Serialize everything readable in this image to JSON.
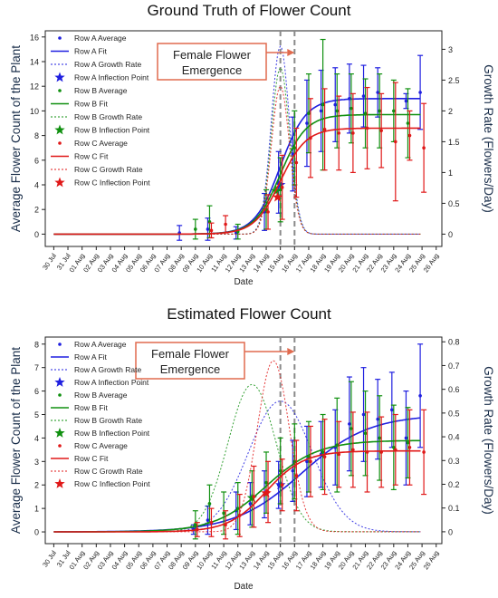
{
  "chart_data": [
    {
      "type": "line",
      "title": "Ground Truth of Flower Count",
      "xlabel": "Date",
      "ylabel": "Average Flower Count of the Plant",
      "y2label": "Growth Rate (Flowers/Day)",
      "ylim": [
        -1,
        16.5
      ],
      "yticks": [
        0,
        2,
        4,
        6,
        8,
        10,
        12,
        14,
        16
      ],
      "y2lim": [
        -0.2,
        3.3
      ],
      "y2ticks": [
        0,
        0.5,
        1,
        1.5,
        2,
        2.5,
        3
      ],
      "x_ticks": [
        "30 Jul",
        "31 Jul",
        "01 Aug",
        "02 Aug",
        "03 Aug",
        "04 Aug",
        "05 Aug",
        "06 Aug",
        "07 Aug",
        "08 Aug",
        "09 Aug",
        "10 Aug",
        "11 Aug",
        "12 Aug",
        "13 Aug",
        "14 Aug",
        "15 Aug",
        "16 Aug",
        "17 Aug",
        "18 Aug",
        "19 Aug",
        "20 Aug",
        "21 Aug",
        "22 Aug",
        "23 Aug",
        "24 Aug",
        "25 Aug",
        "26 Aug"
      ],
      "annotation": {
        "text_line1": "Female Flower",
        "text_line2": "Emergence"
      },
      "vlines": [
        "15 Aug",
        "16 Aug"
      ],
      "legend_position": "top-left",
      "series": [
        {
          "name": "Row A",
          "color": "#1f1fe0",
          "fit": {
            "L": 11.0,
            "k": 1.1,
            "x0": "15 Aug"
          },
          "rate": {
            "peak": 3.05,
            "center": "15 Aug",
            "width": 0.9
          },
          "inflection": {
            "x": "15 Aug",
            "y": 4.0
          },
          "average": [
            {
              "date": "08 Aug",
              "mean": 0.1,
              "err": 0.6
            },
            {
              "date": "10 Aug",
              "mean": 0.4,
              "err": 0.9
            },
            {
              "date": "12 Aug",
              "mean": 0.1,
              "err": 0.5
            },
            {
              "date": "14 Aug",
              "mean": 1.8,
              "err": 1.5
            },
            {
              "date": "15 Aug",
              "mean": 4.2,
              "err": 2.5
            },
            {
              "date": "16 Aug",
              "mean": 6.5,
              "err": 3.0
            },
            {
              "date": "17 Aug",
              "mean": 9.0,
              "err": 3.5
            },
            {
              "date": "18 Aug",
              "mean": 10.0,
              "err": 3.3
            },
            {
              "date": "19 Aug",
              "mean": 10.5,
              "err": 3.0
            },
            {
              "date": "20 Aug",
              "mean": 11.0,
              "err": 2.8
            },
            {
              "date": "21 Aug",
              "mean": 11.2,
              "err": 2.5
            },
            {
              "date": "22 Aug",
              "mean": 11.5,
              "err": 2.0
            },
            {
              "date": "24 Aug",
              "mean": 10.8,
              "err": 0.6
            },
            {
              "date": "25 Aug",
              "mean": 11.5,
              "err": 3.0
            }
          ]
        },
        {
          "name": "Row B",
          "color": "#109010",
          "fit": {
            "L": 9.7,
            "k": 1.1,
            "x0": "15 Aug"
          },
          "rate": {
            "peak": 2.7,
            "center": "15 Aug",
            "width": 0.9
          },
          "inflection": {
            "x": "14.7 Aug",
            "y": 3.5
          },
          "average": [
            {
              "date": "09 Aug",
              "mean": 0.4,
              "err": 0.8
            },
            {
              "date": "10 Aug",
              "mean": 1.0,
              "err": 1.3
            },
            {
              "date": "12 Aug",
              "mean": 0.2,
              "err": 0.6
            },
            {
              "date": "14 Aug",
              "mean": 2.0,
              "err": 1.6
            },
            {
              "date": "15 Aug",
              "mean": 3.6,
              "err": 2.6
            },
            {
              "date": "16 Aug",
              "mean": 7.0,
              "err": 3.0
            },
            {
              "date": "17 Aug",
              "mean": 9.8,
              "err": 3.2
            },
            {
              "date": "18 Aug",
              "mean": 10.5,
              "err": 5.3
            },
            {
              "date": "19 Aug",
              "mean": 10.0,
              "err": 3.0
            },
            {
              "date": "20 Aug",
              "mean": 10.2,
              "err": 2.8
            },
            {
              "date": "21 Aug",
              "mean": 9.8,
              "err": 2.8
            },
            {
              "date": "22 Aug",
              "mean": 10.0,
              "err": 3.0
            },
            {
              "date": "23 Aug",
              "mean": 10.0,
              "err": 2.5
            },
            {
              "date": "24 Aug",
              "mean": 9.0,
              "err": 2.8
            }
          ]
        },
        {
          "name": "Row C",
          "color": "#e01818",
          "fit": {
            "L": 8.6,
            "k": 1.1,
            "x0": "15 Aug"
          },
          "rate": {
            "peak": 2.4,
            "center": "15 Aug",
            "width": 0.9
          },
          "inflection": {
            "x": "14.8 Aug",
            "y": 3.0
          },
          "average": [
            {
              "date": "10 Aug",
              "mean": 0.3,
              "err": 0.6
            },
            {
              "date": "11 Aug",
              "mean": 0.8,
              "err": 0.7
            },
            {
              "date": "14 Aug",
              "mean": 1.8,
              "err": 1.4
            },
            {
              "date": "15 Aug",
              "mean": 3.8,
              "err": 2.6
            },
            {
              "date": "16 Aug",
              "mean": 5.8,
              "err": 2.8
            },
            {
              "date": "17 Aug",
              "mean": 7.8,
              "err": 3.2
            },
            {
              "date": "18 Aug",
              "mean": 8.5,
              "err": 3.3
            },
            {
              "date": "19 Aug",
              "mean": 8.2,
              "err": 3.0
            },
            {
              "date": "20 Aug",
              "mean": 8.2,
              "err": 3.2
            },
            {
              "date": "21 Aug",
              "mean": 8.6,
              "err": 3.3
            },
            {
              "date": "22 Aug",
              "mean": 8.4,
              "err": 3.0
            },
            {
              "date": "23 Aug",
              "mean": 7.5,
              "err": 4.8
            },
            {
              "date": "24 Aug",
              "mean": 8.0,
              "err": 2.0
            },
            {
              "date": "25 Aug",
              "mean": 7.0,
              "err": 3.6
            }
          ]
        }
      ],
      "legend_suffixes": [
        "Average",
        "Fit",
        "Growth Rate",
        "Inflection Point"
      ]
    },
    {
      "type": "line",
      "title": "Estimated Flower Count",
      "xlabel": "Date",
      "ylabel": "Average Flower Count of the Plant",
      "y2label": "Growth Rate (Flowers/Day)",
      "ylim": [
        -0.5,
        8.3
      ],
      "yticks": [
        0,
        1,
        2,
        3,
        4,
        5,
        6,
        7,
        8
      ],
      "y2lim": [
        -0.05,
        0.82
      ],
      "y2ticks": [
        0,
        0.1,
        0.2,
        0.3,
        0.4,
        0.5,
        0.6,
        0.7,
        0.8
      ],
      "x_ticks": [
        "30 Jul",
        "31 Jul",
        "01 Aug",
        "02 Aug",
        "03 Aug",
        "04 Aug",
        "05 Aug",
        "06 Aug",
        "07 Aug",
        "08 Aug",
        "09 Aug",
        "10 Aug",
        "11 Aug",
        "12 Aug",
        "13 Aug",
        "14 Aug",
        "15 Aug",
        "16 Aug",
        "17 Aug",
        "18 Aug",
        "19 Aug",
        "20 Aug",
        "21 Aug",
        "22 Aug",
        "23 Aug",
        "24 Aug",
        "25 Aug",
        "26 Aug"
      ],
      "annotation": {
        "text_line1": "Female Flower",
        "text_line2": "Emergence"
      },
      "vlines": [
        "15 Aug",
        "16 Aug"
      ],
      "legend_position": "top-left",
      "series": [
        {
          "name": "Row A",
          "color": "#1f1fe0",
          "fit": {
            "L": 5.0,
            "k": 0.42,
            "x0": "16.5 Aug"
          },
          "rate": {
            "peak": 0.55,
            "center": "15 Aug",
            "width": 3.2
          },
          "inflection": {
            "x": "15 Aug",
            "y": 2.0
          },
          "average": [
            {
              "date": "09 Aug",
              "mean": 0.1,
              "err": 0.2
            },
            {
              "date": "10 Aug",
              "mean": 0.5,
              "err": 0.6
            },
            {
              "date": "12 Aug",
              "mean": 0.9,
              "err": 0.8
            },
            {
              "date": "13 Aug",
              "mean": 1.2,
              "err": 0.9
            },
            {
              "date": "14 Aug",
              "mean": 1.6,
              "err": 1.0
            },
            {
              "date": "15 Aug",
              "mean": 2.0,
              "err": 1.0
            },
            {
              "date": "16 Aug",
              "mean": 2.6,
              "err": 1.3
            },
            {
              "date": "17 Aug",
              "mean": 3.0,
              "err": 1.5
            },
            {
              "date": "18 Aug",
              "mean": 3.3,
              "err": 1.4
            },
            {
              "date": "19 Aug",
              "mean": 3.6,
              "err": 1.6
            },
            {
              "date": "20 Aug",
              "mean": 4.6,
              "err": 2.0
            },
            {
              "date": "21 Aug",
              "mean": 5.0,
              "err": 2.0
            },
            {
              "date": "22 Aug",
              "mean": 4.8,
              "err": 1.7
            },
            {
              "date": "23 Aug",
              "mean": 5.2,
              "err": 1.6
            },
            {
              "date": "24 Aug",
              "mean": 4.0,
              "err": 2.0
            },
            {
              "date": "25 Aug",
              "mean": 5.8,
              "err": 2.2
            }
          ]
        },
        {
          "name": "Row B",
          "color": "#109010",
          "fit": {
            "L": 3.9,
            "k": 0.55,
            "x0": "14 Aug"
          },
          "rate": {
            "peak": 0.62,
            "center": "13 Aug",
            "width": 2.4
          },
          "inflection": {
            "x": "13 Aug",
            "y": 1.45
          },
          "average": [
            {
              "date": "09 Aug",
              "mean": 0.3,
              "err": 0.6
            },
            {
              "date": "10 Aug",
              "mean": 1.2,
              "err": 0.8
            },
            {
              "date": "11 Aug",
              "mean": 0.8,
              "err": 0.9
            },
            {
              "date": "12 Aug",
              "mean": 1.0,
              "err": 1.1
            },
            {
              "date": "13 Aug",
              "mean": 1.4,
              "err": 1.2
            },
            {
              "date": "14 Aug",
              "mean": 2.1,
              "err": 1.3
            },
            {
              "date": "15 Aug",
              "mean": 2.6,
              "err": 1.4
            },
            {
              "date": "16 Aug",
              "mean": 3.0,
              "err": 1.6
            },
            {
              "date": "17 Aug",
              "mean": 3.2,
              "err": 1.5
            },
            {
              "date": "18 Aug",
              "mean": 3.4,
              "err": 1.6
            },
            {
              "date": "19 Aug",
              "mean": 3.7,
              "err": 2.0
            },
            {
              "date": "20 Aug",
              "mean": 4.4,
              "err": 2.0
            },
            {
              "date": "21 Aug",
              "mean": 4.2,
              "err": 1.8
            },
            {
              "date": "22 Aug",
              "mean": 4.0,
              "err": 1.8
            },
            {
              "date": "23 Aug",
              "mean": 3.6,
              "err": 1.8
            },
            {
              "date": "24 Aug",
              "mean": 3.8,
              "err": 1.5
            }
          ]
        },
        {
          "name": "Row C",
          "color": "#e01818",
          "fit": {
            "L": 3.45,
            "k": 0.75,
            "x0": "14 Aug"
          },
          "rate": {
            "peak": 0.72,
            "center": "14.5 Aug",
            "width": 1.6
          },
          "inflection": {
            "x": "14 Aug",
            "y": 1.65
          },
          "average": [
            {
              "date": "09 Aug",
              "mean": 0.1,
              "err": 0.3
            },
            {
              "date": "10 Aug",
              "mean": 0.4,
              "err": 0.6
            },
            {
              "date": "11 Aug",
              "mean": 0.3,
              "err": 0.6
            },
            {
              "date": "12 Aug",
              "mean": 0.7,
              "err": 0.9
            },
            {
              "date": "13 Aug",
              "mean": 1.5,
              "err": 1.3
            },
            {
              "date": "14 Aug",
              "mean": 1.7,
              "err": 1.3
            },
            {
              "date": "15 Aug",
              "mean": 2.0,
              "err": 1.1
            },
            {
              "date": "16 Aug",
              "mean": 2.4,
              "err": 1.5
            },
            {
              "date": "17 Aug",
              "mean": 3.0,
              "err": 1.5
            },
            {
              "date": "18 Aug",
              "mean": 3.2,
              "err": 1.6
            },
            {
              "date": "19 Aug",
              "mean": 3.3,
              "err": 1.4
            },
            {
              "date": "20 Aug",
              "mean": 3.5,
              "err": 1.6
            },
            {
              "date": "21 Aug",
              "mean": 3.4,
              "err": 1.7
            },
            {
              "date": "22 Aug",
              "mean": 3.4,
              "err": 1.5
            },
            {
              "date": "23 Aug",
              "mean": 3.5,
              "err": 1.5
            },
            {
              "date": "24 Aug",
              "mean": 3.6,
              "err": 1.6
            },
            {
              "date": "25 Aug",
              "mean": 3.4,
              "err": 1.8
            }
          ]
        }
      ],
      "legend_suffixes": [
        "Average",
        "Fit",
        "Growth Rate",
        "Inflection Point"
      ]
    }
  ]
}
